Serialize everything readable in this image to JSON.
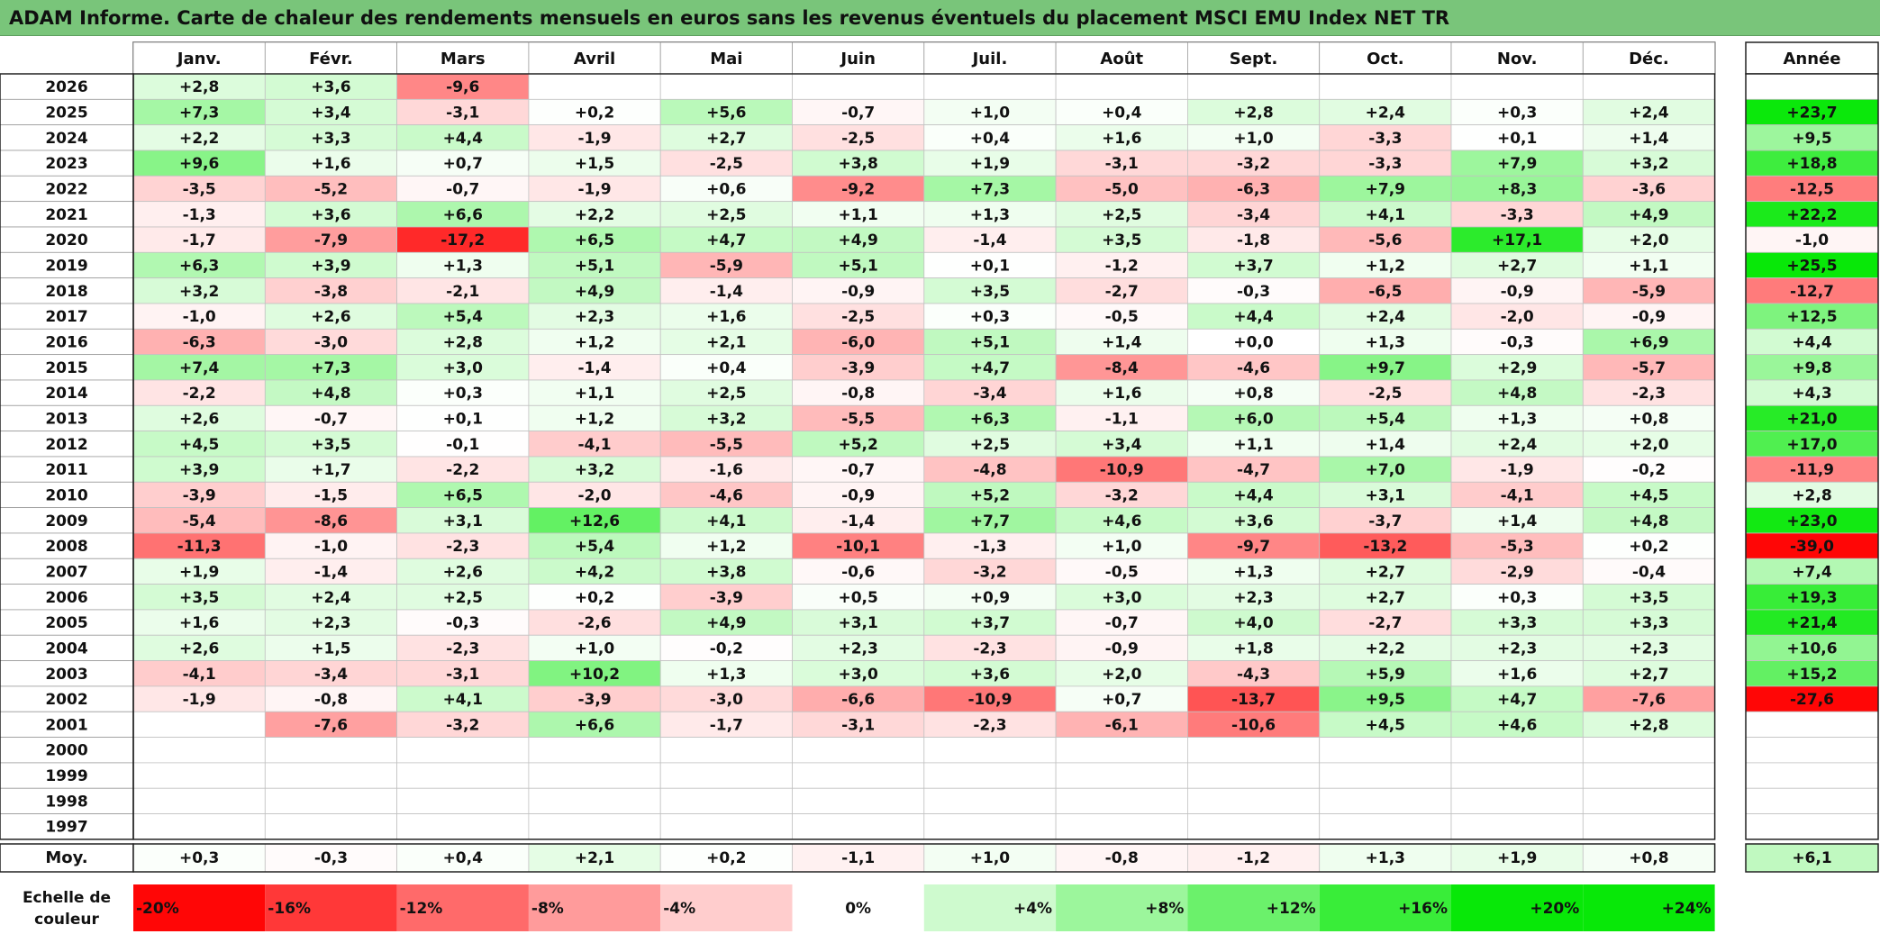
{
  "title": "ADAM Informe. Carte de chaleur des rendements mensuels en euros sans les revenus éventuels du placement MSCI EMU Index NET TR",
  "chart_data": {
    "type": "heatmap",
    "title": "ADAM Informe. Carte de chaleur des rendements mensuels en euros sans les revenus éventuels du placement MSCI EMU Index NET TR",
    "months": [
      "Janv.",
      "Févr.",
      "Mars",
      "Avril",
      "Mai",
      "Juin",
      "Juil.",
      "Août",
      "Sept.",
      "Oct.",
      "Nov.",
      "Déc."
    ],
    "annual_header": "Année",
    "rows": [
      {
        "year": "2026",
        "values": [
          "+2,8",
          "+3,6",
          "-9,6",
          "",
          "",
          "",
          "",
          "",
          "",
          "",
          "",
          ""
        ],
        "annual": ""
      },
      {
        "year": "2025",
        "values": [
          "+7,3",
          "+3,4",
          "-3,1",
          "+0,2",
          "+5,6",
          "-0,7",
          "+1,0",
          "+0,4",
          "+2,8",
          "+2,4",
          "+0,3",
          "+2,4"
        ],
        "annual": "+23,7"
      },
      {
        "year": "2024",
        "values": [
          "+2,2",
          "+3,3",
          "+4,4",
          "-1,9",
          "+2,7",
          "-2,5",
          "+0,4",
          "+1,6",
          "+1,0",
          "-3,3",
          "+0,1",
          "+1,4"
        ],
        "annual": "+9,5"
      },
      {
        "year": "2023",
        "values": [
          "+9,6",
          "+1,6",
          "+0,7",
          "+1,5",
          "-2,5",
          "+3,8",
          "+1,9",
          "-3,1",
          "-3,2",
          "-3,3",
          "+7,9",
          "+3,2"
        ],
        "annual": "+18,8"
      },
      {
        "year": "2022",
        "values": [
          "-3,5",
          "-5,2",
          "-0,7",
          "-1,9",
          "+0,6",
          "-9,2",
          "+7,3",
          "-5,0",
          "-6,3",
          "+7,9",
          "+8,3",
          "-3,6"
        ],
        "annual": "-12,5"
      },
      {
        "year": "2021",
        "values": [
          "-1,3",
          "+3,6",
          "+6,6",
          "+2,2",
          "+2,5",
          "+1,1",
          "+1,3",
          "+2,5",
          "-3,4",
          "+4,1",
          "-3,3",
          "+4,9"
        ],
        "annual": "+22,2"
      },
      {
        "year": "2020",
        "values": [
          "-1,7",
          "-7,9",
          "-17,2",
          "+6,5",
          "+4,7",
          "+4,9",
          "-1,4",
          "+3,5",
          "-1,8",
          "-5,6",
          "+17,1",
          "+2,0"
        ],
        "annual": "-1,0"
      },
      {
        "year": "2019",
        "values": [
          "+6,3",
          "+3,9",
          "+1,3",
          "+5,1",
          "-5,9",
          "+5,1",
          "+0,1",
          "-1,2",
          "+3,7",
          "+1,2",
          "+2,7",
          "+1,1"
        ],
        "annual": "+25,5"
      },
      {
        "year": "2018",
        "values": [
          "+3,2",
          "-3,8",
          "-2,1",
          "+4,9",
          "-1,4",
          "-0,9",
          "+3,5",
          "-2,7",
          "-0,3",
          "-6,5",
          "-0,9",
          "-5,9"
        ],
        "annual": "-12,7"
      },
      {
        "year": "2017",
        "values": [
          "-1,0",
          "+2,6",
          "+5,4",
          "+2,3",
          "+1,6",
          "-2,5",
          "+0,3",
          "-0,5",
          "+4,4",
          "+2,4",
          "-2,0",
          "-0,9"
        ],
        "annual": "+12,5"
      },
      {
        "year": "2016",
        "values": [
          "-6,3",
          "-3,0",
          "+2,8",
          "+1,2",
          "+2,1",
          "-6,0",
          "+5,1",
          "+1,4",
          "+0,0",
          "+1,3",
          "-0,3",
          "+6,9"
        ],
        "annual": "+4,4"
      },
      {
        "year": "2015",
        "values": [
          "+7,4",
          "+7,3",
          "+3,0",
          "-1,4",
          "+0,4",
          "-3,9",
          "+4,7",
          "-8,4",
          "-4,6",
          "+9,7",
          "+2,9",
          "-5,7"
        ],
        "annual": "+9,8"
      },
      {
        "year": "2014",
        "values": [
          "-2,2",
          "+4,8",
          "+0,3",
          "+1,1",
          "+2,5",
          "-0,8",
          "-3,4",
          "+1,6",
          "+0,8",
          "-2,5",
          "+4,8",
          "-2,3"
        ],
        "annual": "+4,3"
      },
      {
        "year": "2013",
        "values": [
          "+2,6",
          "-0,7",
          "+0,1",
          "+1,2",
          "+3,2",
          "-5,5",
          "+6,3",
          "-1,1",
          "+6,0",
          "+5,4",
          "+1,3",
          "+0,8"
        ],
        "annual": "+21,0"
      },
      {
        "year": "2012",
        "values": [
          "+4,5",
          "+3,5",
          "-0,1",
          "-4,1",
          "-5,5",
          "+5,2",
          "+2,5",
          "+3,4",
          "+1,1",
          "+1,4",
          "+2,4",
          "+2,0"
        ],
        "annual": "+17,0"
      },
      {
        "year": "2011",
        "values": [
          "+3,9",
          "+1,7",
          "-2,2",
          "+3,2",
          "-1,6",
          "-0,7",
          "-4,8",
          "-10,9",
          "-4,7",
          "+7,0",
          "-1,9",
          "-0,2"
        ],
        "annual": "-11,9"
      },
      {
        "year": "2010",
        "values": [
          "-3,9",
          "-1,5",
          "+6,5",
          "-2,0",
          "-4,6",
          "-0,9",
          "+5,2",
          "-3,2",
          "+4,4",
          "+3,1",
          "-4,1",
          "+4,5"
        ],
        "annual": "+2,8"
      },
      {
        "year": "2009",
        "values": [
          "-5,4",
          "-8,6",
          "+3,1",
          "+12,6",
          "+4,1",
          "-1,4",
          "+7,7",
          "+4,6",
          "+3,6",
          "-3,7",
          "+1,4",
          "+4,8"
        ],
        "annual": "+23,0"
      },
      {
        "year": "2008",
        "values": [
          "-11,3",
          "-1,0",
          "-2,3",
          "+5,4",
          "+1,2",
          "-10,1",
          "-1,3",
          "+1,0",
          "-9,7",
          "-13,2",
          "-5,3",
          "+0,2"
        ],
        "annual": "-39,0"
      },
      {
        "year": "2007",
        "values": [
          "+1,9",
          "-1,4",
          "+2,6",
          "+4,2",
          "+3,8",
          "-0,6",
          "-3,2",
          "-0,5",
          "+1,3",
          "+2,7",
          "-2,9",
          "-0,4"
        ],
        "annual": "+7,4"
      },
      {
        "year": "2006",
        "values": [
          "+3,5",
          "+2,4",
          "+2,5",
          "+0,2",
          "-3,9",
          "+0,5",
          "+0,9",
          "+3,0",
          "+2,3",
          "+2,7",
          "+0,3",
          "+3,5"
        ],
        "annual": "+19,3"
      },
      {
        "year": "2005",
        "values": [
          "+1,6",
          "+2,3",
          "-0,3",
          "-2,6",
          "+4,9",
          "+3,1",
          "+3,7",
          "-0,7",
          "+4,0",
          "-2,7",
          "+3,3",
          "+3,3"
        ],
        "annual": "+21,4"
      },
      {
        "year": "2004",
        "values": [
          "+2,6",
          "+1,5",
          "-2,3",
          "+1,0",
          "-0,2",
          "+2,3",
          "-2,3",
          "-0,9",
          "+1,8",
          "+2,2",
          "+2,3",
          "+2,3"
        ],
        "annual": "+10,6"
      },
      {
        "year": "2003",
        "values": [
          "-4,1",
          "-3,4",
          "-3,1",
          "+10,2",
          "+1,3",
          "+3,0",
          "+3,6",
          "+2,0",
          "-4,3",
          "+5,9",
          "+1,6",
          "+2,7"
        ],
        "annual": "+15,2"
      },
      {
        "year": "2002",
        "values": [
          "-1,9",
          "-0,8",
          "+4,1",
          "-3,9",
          "-3,0",
          "-6,6",
          "-10,9",
          "+0,7",
          "-13,7",
          "+9,5",
          "+4,7",
          "-7,6"
        ],
        "annual": "-27,6"
      },
      {
        "year": "2001",
        "values": [
          "",
          "-7,6",
          "-3,2",
          "+6,6",
          "-1,7",
          "-3,1",
          "-2,3",
          "-6,1",
          "-10,6",
          "+4,5",
          "+4,6",
          "+2,8"
        ],
        "annual": ""
      },
      {
        "year": "2000",
        "values": [
          "",
          "",
          "",
          "",
          "",
          "",
          "",
          "",
          "",
          "",
          "",
          ""
        ],
        "annual": ""
      },
      {
        "year": "1999",
        "values": [
          "",
          "",
          "",
          "",
          "",
          "",
          "",
          "",
          "",
          "",
          "",
          ""
        ],
        "annual": ""
      },
      {
        "year": "1998",
        "values": [
          "",
          "",
          "",
          "",
          "",
          "",
          "",
          "",
          "",
          "",
          "",
          ""
        ],
        "annual": ""
      },
      {
        "year": "1997",
        "values": [
          "",
          "",
          "",
          "",
          "",
          "",
          "",
          "",
          "",
          "",
          "",
          ""
        ],
        "annual": ""
      }
    ],
    "average": {
      "label": "Moy.",
      "values": [
        "+0,3",
        "-0,3",
        "+0,4",
        "+2,1",
        "+0,2",
        "-1,1",
        "+1,0",
        "-0,8",
        "-1,2",
        "+1,3",
        "+1,9",
        "+0,8"
      ],
      "annual": "+6,1"
    },
    "color_scale": {
      "label_line1": "Echelle de",
      "label_line2": "couleur",
      "steps": [
        "-20%",
        "-16%",
        "-12%",
        "-8%",
        "-4%",
        "0%",
        "+4%",
        "+8%",
        "+12%",
        "+16%",
        "+20%",
        "+24%"
      ]
    }
  }
}
